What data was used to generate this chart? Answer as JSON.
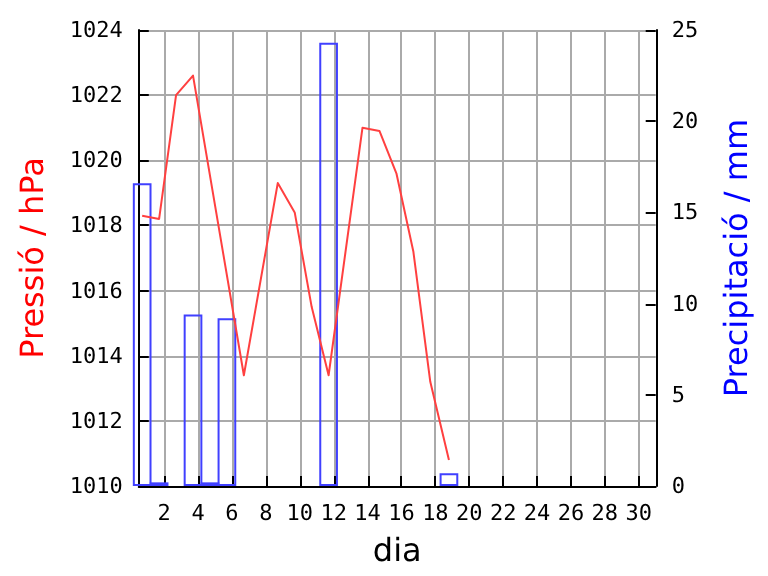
{
  "chart_data": {
    "type": "line",
    "xlabel": "dia",
    "ylabel": "Pressió / hPa",
    "y2label": "Precipitació / mm",
    "xlim": [
      0.5,
      31
    ],
    "xticks": [
      2,
      4,
      6,
      8,
      10,
      12,
      14,
      16,
      18,
      20,
      22,
      24,
      26,
      28,
      30
    ],
    "ylim": [
      1010,
      1024
    ],
    "yticks": [
      1010,
      1012,
      1014,
      1016,
      1018,
      1020,
      1022,
      1024
    ],
    "y2lim": [
      0,
      25
    ],
    "y2ticks": [
      0,
      5,
      10,
      15,
      20,
      25
    ],
    "grid": true,
    "marker": "none",
    "line_style": "solid",
    "series": [
      {
        "color": "#ff4040",
        "x": [
          0.7,
          1.7,
          2.7,
          3.7,
          6.7,
          8.7,
          9.7,
          10.7,
          11.7,
          13.7,
          14.7,
          15.7,
          16.7,
          17.7,
          18.8
        ],
        "values": [
          1018.3,
          1018.2,
          1022.0,
          1022.6,
          1013.4,
          1019.3,
          1018.4,
          1015.5,
          1013.4,
          1021.0,
          1020.9,
          1019.6,
          1017.2,
          1013.2,
          1010.8
        ]
      },
      {
        "type": "bar",
        "axis": "y2",
        "color": "#4040ff",
        "x": [
          0.7,
          1.7,
          3.7,
          4.7,
          5.7,
          11.7,
          18.8
        ],
        "values": [
          16.6,
          0.2,
          9.4,
          0.2,
          9.2,
          24.3,
          0.7
        ]
      }
    ]
  }
}
